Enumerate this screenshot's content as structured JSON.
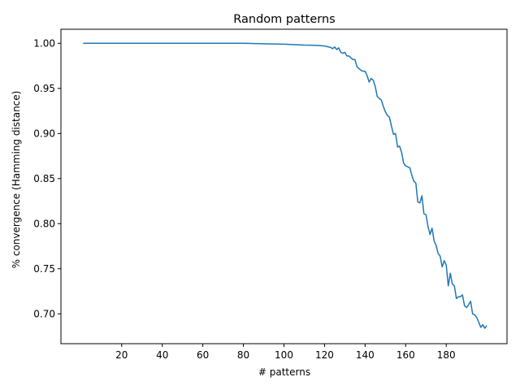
{
  "chart_data": {
    "type": "line",
    "title": "Random patterns",
    "xlabel": "# patterns",
    "ylabel": "% convergence (Hamming distance)",
    "xlim": [
      -9.95,
      209.95
    ],
    "ylim": [
      0.6669,
      1.0156
    ],
    "xticks": [
      20,
      40,
      60,
      80,
      100,
      120,
      140,
      160,
      180
    ],
    "yticks": [
      0.7,
      0.75,
      0.8,
      0.85,
      0.9,
      0.95,
      1.0
    ],
    "ytick_labels": [
      "0.70",
      "0.75",
      "0.80",
      "0.85",
      "0.90",
      "0.95",
      "1.00"
    ],
    "grid": false,
    "color": "#1f77b4",
    "series": [
      {
        "x": [
          1,
          20,
          40,
          60,
          80,
          90,
          100,
          106,
          110,
          115,
          118,
          120,
          122,
          123,
          124,
          125,
          126,
          127,
          128,
          129,
          130,
          131,
          132,
          133,
          134,
          135,
          136,
          137,
          138,
          139,
          140,
          141,
          142,
          143,
          144,
          145,
          146,
          147,
          148,
          149,
          150,
          151,
          152,
          153,
          154,
          155,
          156,
          157,
          158,
          159,
          160,
          161,
          162,
          163,
          164,
          165,
          166,
          167,
          168,
          169,
          170,
          171,
          172,
          173,
          174,
          175,
          176,
          177,
          178,
          179,
          180,
          181,
          182,
          183,
          184,
          185,
          186,
          187,
          188,
          189,
          190,
          191,
          192,
          193,
          194,
          195,
          196,
          197,
          198,
          199,
          200
        ],
        "y": [
          1.0,
          1.0,
          1.0,
          1.0,
          1.0,
          0.9995,
          0.999,
          0.9985,
          0.998,
          0.9978,
          0.9975,
          0.997,
          0.996,
          0.9955,
          0.994,
          0.996,
          0.993,
          0.995,
          0.99,
          0.989,
          0.99,
          0.986,
          0.986,
          0.984,
          0.982,
          0.982,
          0.974,
          0.972,
          0.97,
          0.969,
          0.969,
          0.964,
          0.957,
          0.961,
          0.959,
          0.952,
          0.941,
          0.939,
          0.937,
          0.93,
          0.924,
          0.92,
          0.918,
          0.908,
          0.899,
          0.9,
          0.885,
          0.886,
          0.879,
          0.867,
          0.864,
          0.863,
          0.862,
          0.854,
          0.847,
          0.845,
          0.824,
          0.823,
          0.831,
          0.811,
          0.81,
          0.797,
          0.788,
          0.795,
          0.781,
          0.776,
          0.767,
          0.764,
          0.752,
          0.759,
          0.754,
          0.731,
          0.745,
          0.733,
          0.731,
          0.717,
          0.719,
          0.719,
          0.721,
          0.709,
          0.707,
          0.71,
          0.714,
          0.7,
          0.699,
          0.696,
          0.691,
          0.685,
          0.688,
          0.684,
          0.687
        ]
      }
    ]
  }
}
